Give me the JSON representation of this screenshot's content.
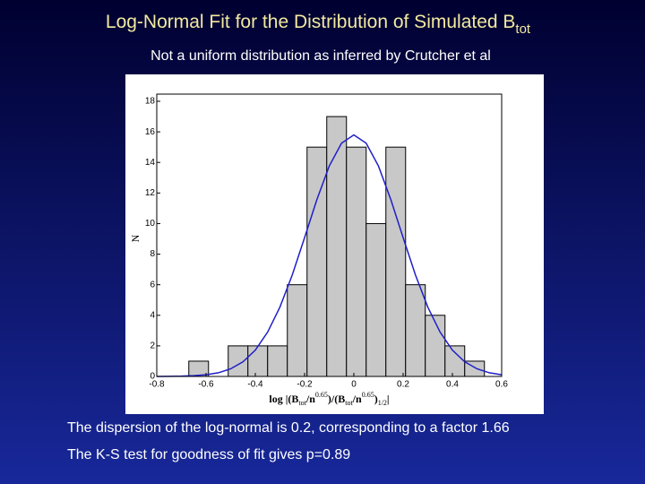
{
  "chart_data": {
    "type": "histogram",
    "title": "Log-Normal Fit for the Distribution of Simulated  B",
    "title_sub": "tot",
    "subtitle": "Not a uniform distribution as inferred by Crutcher et al",
    "y_label": "N",
    "x_label": [
      {
        "text": "log |(B"
      },
      {
        "text": "tot",
        "shift": "sub"
      },
      {
        "text": "/n"
      },
      {
        "text": "0.65",
        "shift": "super"
      },
      {
        "text": ")/(B"
      },
      {
        "text": "tot",
        "shift": "sub"
      },
      {
        "text": "/n"
      },
      {
        "text": "0.65",
        "shift": "super"
      },
      {
        "text": ")"
      },
      {
        "text": "1/2",
        "shift": "sub"
      },
      {
        "text": "|"
      }
    ],
    "bins": [
      -0.67,
      -0.59,
      -0.51,
      -0.43,
      -0.35,
      -0.27,
      -0.19,
      -0.11,
      -0.03,
      0.05,
      0.13,
      0.21,
      0.29,
      0.37,
      0.45,
      0.53
    ],
    "values": [
      1,
      0,
      2,
      2,
      2,
      6,
      15,
      17,
      15,
      10,
      15,
      6,
      4,
      2,
      1
    ],
    "color": "#c8c8c8",
    "curve": {
      "x": [
        -0.8,
        -0.75,
        -0.7,
        -0.65,
        -0.6,
        -0.55,
        -0.5,
        -0.45,
        -0.4,
        -0.35,
        -0.3,
        -0.25,
        -0.2,
        -0.15,
        -0.1,
        -0.05,
        0,
        0.05,
        0.1,
        0.15,
        0.2,
        0.25,
        0.3,
        0.35,
        0.4,
        0.45,
        0.5,
        0.55,
        0.6
      ],
      "values": [
        0,
        0.01,
        0.02,
        0.05,
        0.11,
        0.24,
        0.5,
        0.96,
        1.72,
        2.9,
        4.54,
        6.64,
        9.08,
        11.57,
        13.76,
        15.26,
        15.8,
        15.26,
        13.76,
        11.57,
        9.08,
        6.64,
        4.54,
        2.9,
        1.72,
        0.96,
        0.5,
        0.24,
        0.11
      ],
      "color": "#1f1fc8"
    },
    "xlim": [
      -0.8,
      0.6
    ],
    "xticks": [
      -0.8,
      -0.6,
      -0.4,
      -0.2,
      0,
      0.2,
      0.4,
      0.6
    ],
    "ylim": [
      0,
      18
    ],
    "yticks": [
      0,
      2,
      4,
      6,
      8,
      10,
      12,
      14,
      16,
      18
    ],
    "notes": [
      "The dispersion of the log-normal is 0.2, corresponding to a factor 1.66",
      "The K-S test for goodness of fit gives p=0.89"
    ]
  }
}
